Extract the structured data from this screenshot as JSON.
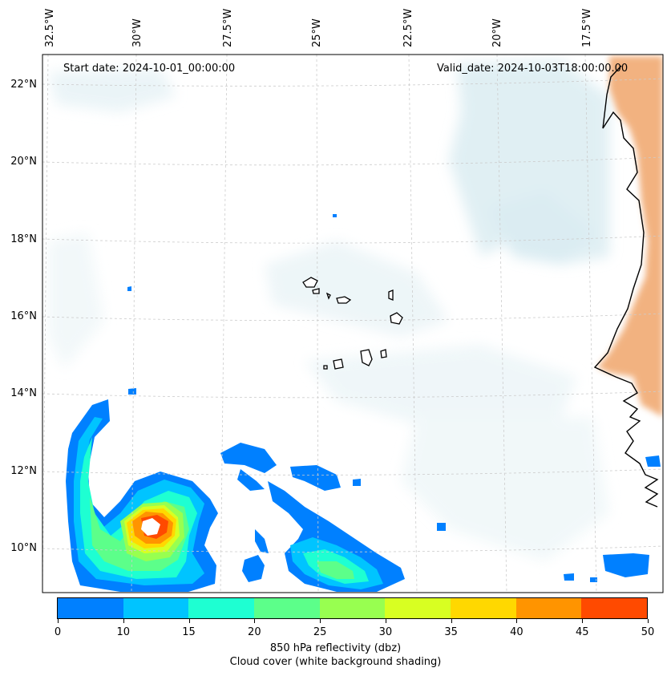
{
  "map": {
    "start_label": "Start date: 2024-10-01_00:00:00",
    "valid_label": "Valid_date: 2024-10-03T18:00:00.00",
    "lon_labels": [
      "32.5°W",
      "30°W",
      "27.5°W",
      "25°W",
      "22.5°W",
      "20°W",
      "17.5°W"
    ],
    "lat_labels": [
      "22°N",
      "20°N",
      "18°N",
      "16°N",
      "14°N",
      "12°N",
      "10°N"
    ],
    "ocean_color": "#ffffff",
    "cloud_color": "#d6eaf0",
    "land_heat_color": "#f0a56a",
    "coast_color": "#000000"
  },
  "colorbar": {
    "ticks": [
      "0",
      "10",
      "15",
      "20",
      "25",
      "30",
      "35",
      "40",
      "45",
      "50"
    ],
    "colors": [
      "#0080ff",
      "#00c4ff",
      "#1effd2",
      "#5cff8a",
      "#98ff50",
      "#d8ff22",
      "#ffd800",
      "#ff9400",
      "#ff4a00"
    ],
    "label": "850 hPa reflectivity (dbz)",
    "sublabel": "Cloud cover (white background shading)"
  }
}
